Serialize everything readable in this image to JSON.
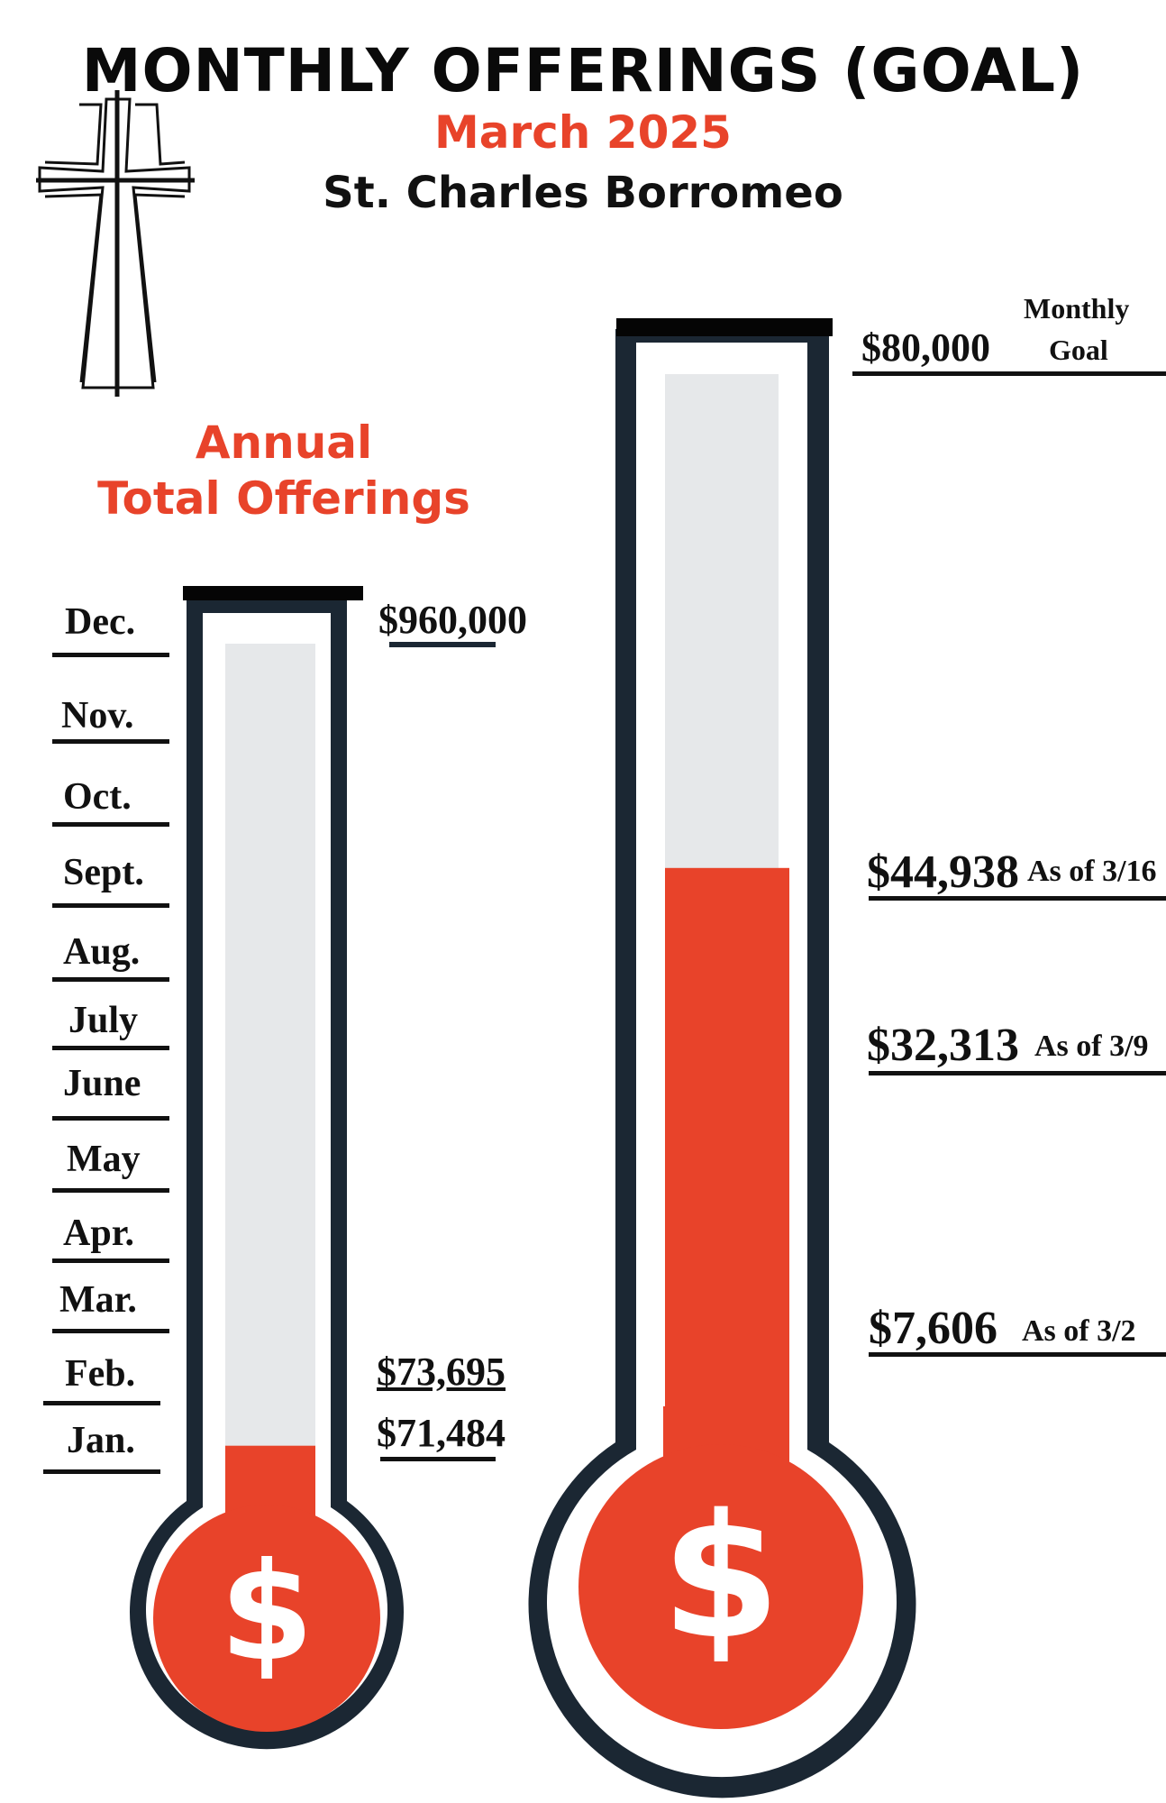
{
  "header": {
    "title": "MONTHLY OFFERINGS (GOAL)",
    "month": "March 2025",
    "parish": "St. Charles Borromeo"
  },
  "annual": {
    "heading_line1": "Annual",
    "heading_line2": "Total Offerings",
    "goal_label": "$960,000",
    "goal_value": 960000,
    "months": [
      "Dec.",
      "Nov.",
      "Oct.",
      "Sept.",
      "Aug.",
      "July",
      "June",
      "May",
      "Apr.",
      "Mar.",
      "Feb.",
      "Jan."
    ],
    "entries": [
      {
        "label": "$73,695",
        "value": 73695
      },
      {
        "label": "$71,484",
        "value": 71484
      }
    ],
    "fill_level": 0.079
  },
  "monthly": {
    "goal_label": "$80,000",
    "goal_caption_line1": "Monthly",
    "goal_caption_line2": "Goal",
    "goal_value": 80000,
    "entries": [
      {
        "amount": "$44,938",
        "note": "As of 3/16",
        "value": 44938
      },
      {
        "amount": "$32,313",
        "note": "As of 3/9",
        "value": 32313
      },
      {
        "amount": "$7,606",
        "note": "As of 3/2",
        "value": 7606
      }
    ],
    "fill_level": 0.56
  },
  "symbols": {
    "currency_glyph": "$",
    "cross_icon": "double-outline-latin-cross"
  },
  "colors": {
    "fill": "#e8432a",
    "tube_outline": "#1b2733",
    "tube_empty": "#e6e8ea",
    "cap": "#050505"
  }
}
